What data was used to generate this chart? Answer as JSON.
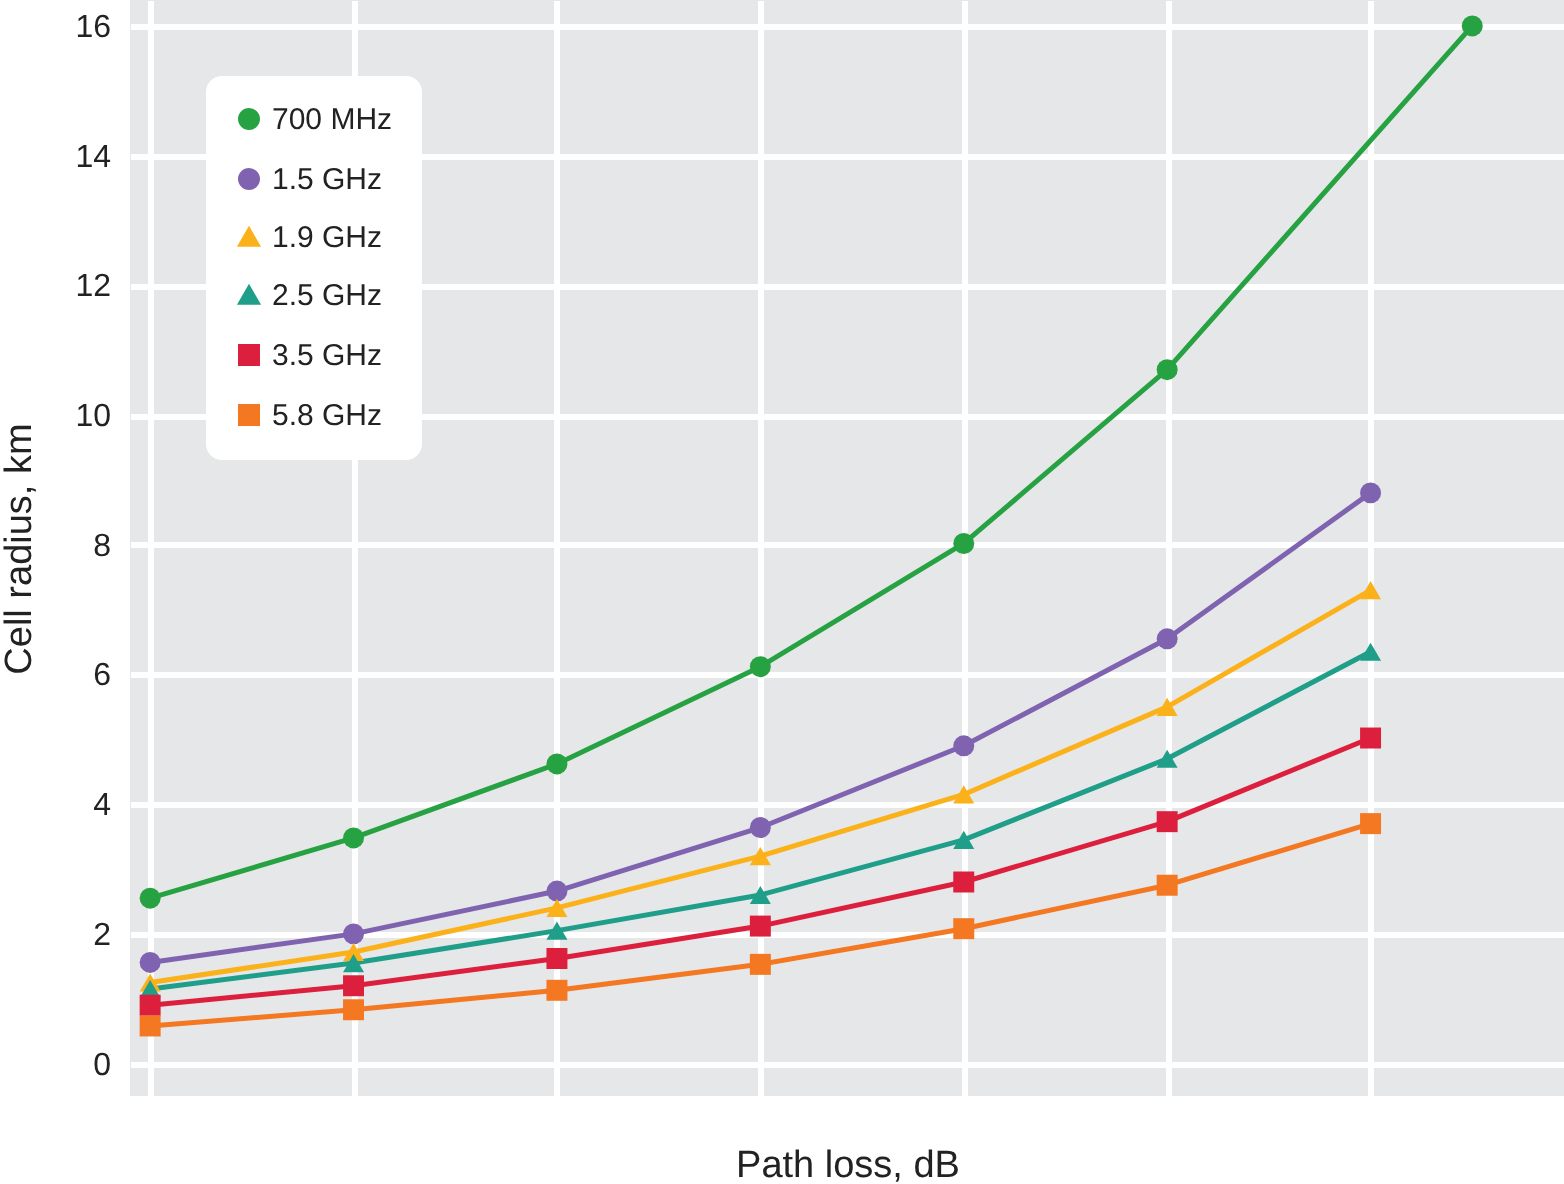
{
  "chart_data": {
    "type": "line",
    "xlabel": "Path loss, dB",
    "ylabel": "Cell radius, km",
    "categories": [
      null,
      null,
      null,
      null,
      null,
      null,
      null,
      null,
      null,
      null,
      null,
      null,
      null,
      null
    ],
    "ylim": [
      -0.5,
      16.4
    ],
    "yticks": [
      0,
      2,
      4,
      6,
      8,
      10,
      12,
      14,
      16
    ],
    "grid": true,
    "legend": "top left",
    "tick_labels": "y",
    "series": [
      {
        "name": "700 MHz",
        "color": "#27a243",
        "marker": "circle",
        "values": [
          2.55,
          null,
          3.48,
          null,
          4.62,
          null,
          6.12,
          null,
          8.02,
          null,
          10.7,
          null,
          null,
          16.0
        ]
      },
      {
        "name": "1.5 GHz",
        "color": "#7f63b0",
        "marker": "circle",
        "values": [
          1.56,
          null,
          2.0,
          null,
          2.66,
          null,
          3.64,
          null,
          4.9,
          null,
          6.55,
          null,
          8.8,
          null
        ]
      },
      {
        "name": "1.9 GHz",
        "color": "#fbb11a",
        "marker": "triangle",
        "values": [
          1.25,
          null,
          1.72,
          null,
          2.4,
          null,
          3.2,
          null,
          4.15,
          null,
          5.5,
          null,
          7.3,
          null
        ]
      },
      {
        "name": "2.5 GHz",
        "color": "#1f9e8a",
        "marker": "triangle",
        "values": [
          1.15,
          null,
          1.55,
          null,
          2.05,
          null,
          2.6,
          null,
          3.45,
          null,
          4.7,
          null,
          6.35,
          null
        ]
      },
      {
        "name": "3.5 GHz",
        "color": "#dd1f3e",
        "marker": "square",
        "values": [
          0.9,
          null,
          1.2,
          null,
          1.62,
          null,
          2.12,
          null,
          2.8,
          null,
          3.73,
          null,
          5.02,
          null
        ]
      },
      {
        "name": "5.8 GHz",
        "color": "#f47721",
        "marker": "square",
        "values": [
          0.58,
          null,
          0.83,
          null,
          1.13,
          null,
          1.53,
          null,
          2.08,
          null,
          2.75,
          null,
          3.7,
          null
        ]
      }
    ]
  }
}
